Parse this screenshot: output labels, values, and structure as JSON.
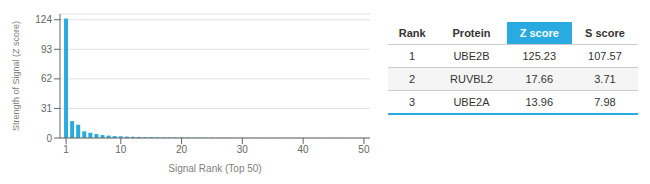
{
  "chart_data": {
    "type": "bar",
    "x": [
      1,
      2,
      3,
      4,
      5,
      6,
      7,
      8,
      9,
      10,
      11,
      12,
      13,
      14,
      15,
      16,
      17,
      18,
      19,
      20,
      21,
      22,
      23,
      24,
      25,
      26,
      27,
      28,
      29,
      30,
      31,
      32,
      33,
      34,
      35,
      36,
      37,
      38,
      39,
      40,
      41,
      42,
      43,
      44,
      45,
      46,
      47,
      48,
      49,
      50
    ],
    "values": [
      125.23,
      17.66,
      13.96,
      7.0,
      5.5,
      4.2,
      3.1,
      2.5,
      2.0,
      1.8,
      1.5,
      1.3,
      1.1,
      0.9,
      0.8,
      0.7,
      0.6,
      0.55,
      0.5,
      0.45,
      0.42,
      0.4,
      0.38,
      0.35,
      0.33,
      0.31,
      0.29,
      0.27,
      0.25,
      0.23,
      0.21,
      0.19,
      0.18,
      0.17,
      0.16,
      0.15,
      0.14,
      0.13,
      0.12,
      0.11,
      0.1,
      0.09,
      0.08,
      0.07,
      0.06,
      0.05,
      0.04,
      0.03,
      0.02,
      0.01
    ],
    "color": "#29abe2",
    "x_label": "Signal Rank (Top 50)",
    "y_label": "Strength of Signal (Z score)",
    "xlim": [
      0,
      51
    ],
    "ylim": [
      0,
      130
    ],
    "xticks": [
      1,
      10,
      20,
      30,
      40,
      50
    ],
    "yticks": [
      0,
      31,
      62,
      93,
      124
    ],
    "grid": true,
    "table_headers": [
      "Rank",
      "Protein",
      "Z score",
      "S score"
    ],
    "table_rows": [
      [
        "1",
        "UBE2B",
        "125.23",
        "107.57"
      ],
      [
        "2",
        "RUVBL2",
        "17.66",
        "3.71"
      ],
      [
        "3",
        "UBE2A",
        "13.96",
        "7.98"
      ]
    ]
  }
}
